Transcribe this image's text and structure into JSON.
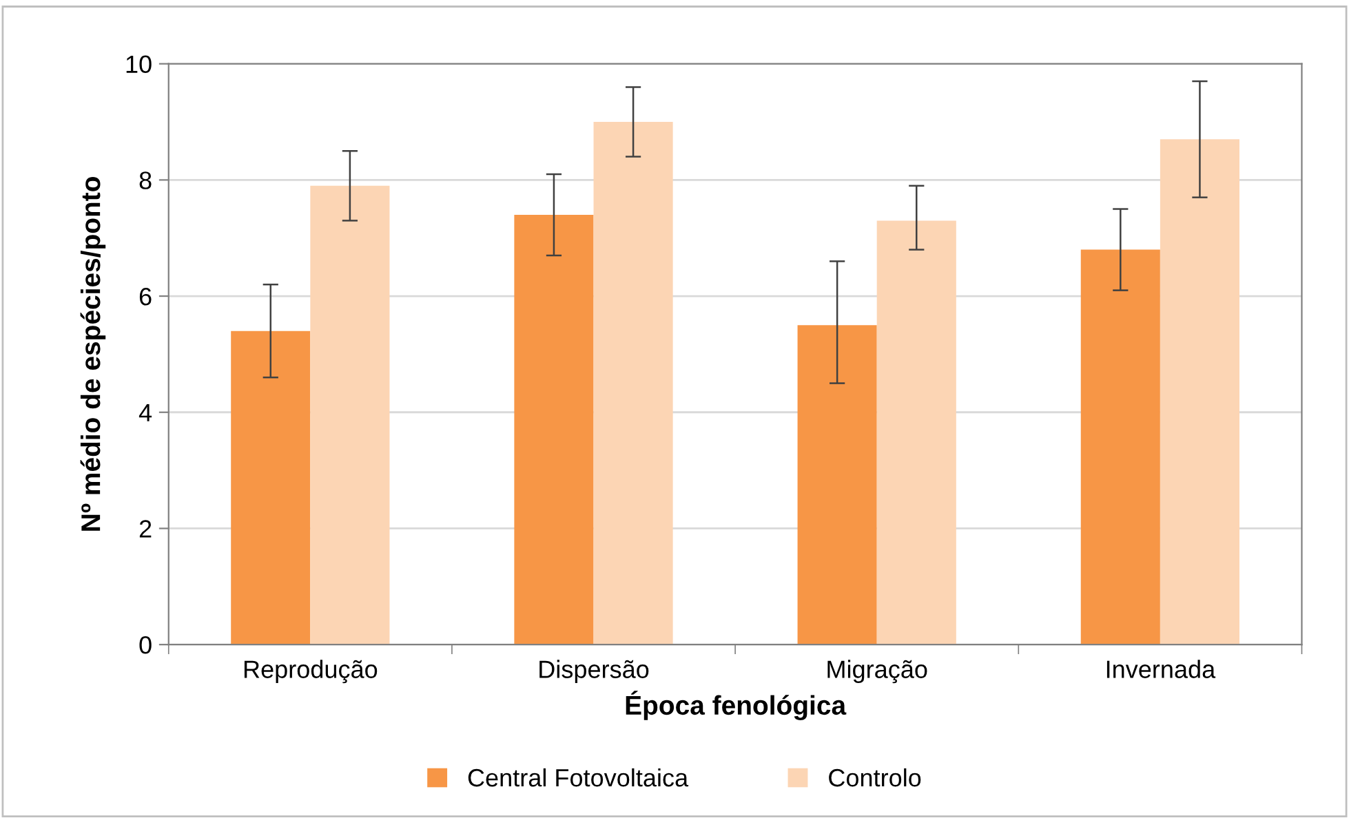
{
  "chart_data": {
    "type": "bar",
    "xlabel": "Época fenológica",
    "ylabel": "Nº médio de espécies/ponto",
    "categories": [
      "Reprodução",
      "Dispersão",
      "Migração",
      "Invernada"
    ],
    "series": [
      {
        "name": "Central Fotovoltaica",
        "color": "#f79646",
        "values": [
          5.4,
          7.4,
          5.5,
          6.8
        ],
        "errors": [
          [
            4.6,
            6.2
          ],
          [
            6.7,
            8.1
          ],
          [
            4.5,
            6.6
          ],
          [
            6.1,
            7.5
          ]
        ]
      },
      {
        "name": "Controlo",
        "color": "#fcd5b4",
        "values": [
          7.9,
          9.0,
          7.3,
          8.7
        ],
        "errors": [
          [
            7.3,
            8.5
          ],
          [
            8.4,
            9.6
          ],
          [
            6.8,
            7.9
          ],
          [
            7.7,
            9.7
          ]
        ]
      }
    ],
    "ylim": [
      0,
      10
    ],
    "yticks": [
      0,
      2,
      4,
      6,
      8,
      10
    ],
    "grid": "y",
    "legend": "bottom"
  }
}
